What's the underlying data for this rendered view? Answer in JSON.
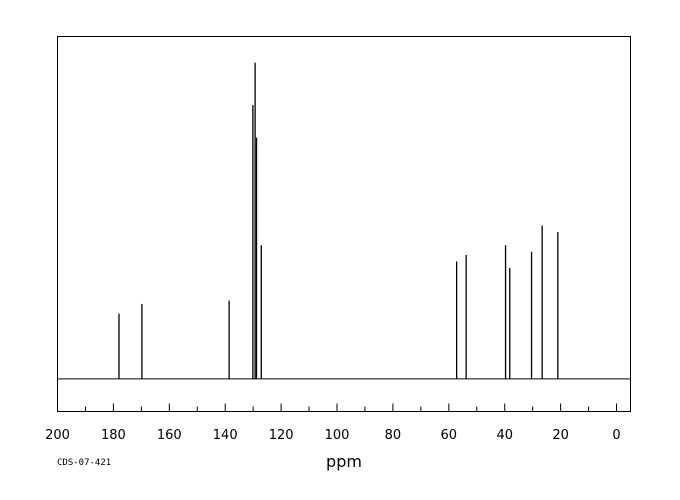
{
  "chart_data": {
    "type": "line",
    "title": "",
    "xlabel": "ppm",
    "ylabel": "",
    "spectrum_code": "CDS-07-421",
    "xlim": [
      200,
      -5
    ],
    "x_reversed": true,
    "x_ticks": [
      200,
      180,
      160,
      140,
      120,
      100,
      80,
      60,
      40,
      20,
      0
    ],
    "grid": false,
    "legend": "none",
    "ylim": [
      -0.1,
      1.05
    ],
    "baseline": 0,
    "peaks": [
      {
        "ppm": 178.0,
        "height": 0.2
      },
      {
        "ppm": 169.8,
        "height": 0.23
      },
      {
        "ppm": 138.6,
        "height": 0.24
      },
      {
        "ppm": 130.1,
        "height": 0.84
      },
      {
        "ppm": 129.3,
        "height": 0.97
      },
      {
        "ppm": 128.8,
        "height": 0.74
      },
      {
        "ppm": 127.1,
        "height": 0.41
      },
      {
        "ppm": 57.2,
        "height": 0.36
      },
      {
        "ppm": 53.8,
        "height": 0.38
      },
      {
        "ppm": 39.7,
        "height": 0.41
      },
      {
        "ppm": 38.2,
        "height": 0.34
      },
      {
        "ppm": 30.4,
        "height": 0.39
      },
      {
        "ppm": 26.6,
        "height": 0.47
      },
      {
        "ppm": 21.0,
        "height": 0.45
      }
    ]
  }
}
